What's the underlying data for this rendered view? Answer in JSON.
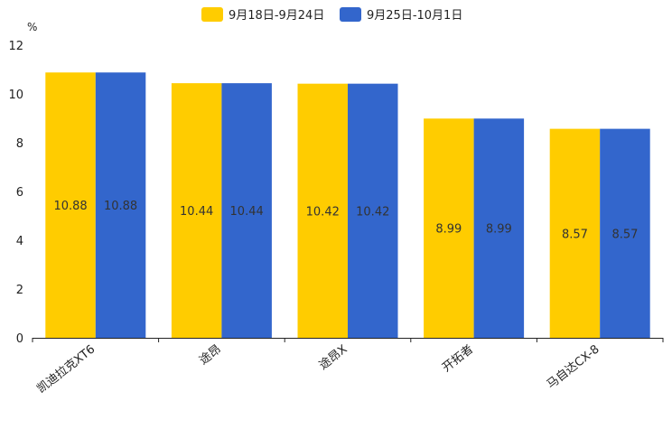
{
  "chart_data": {
    "type": "bar",
    "title": "",
    "ylabel": "%",
    "xlabel": "",
    "ylim": [
      0,
      12
    ],
    "yticks": [
      0,
      2,
      4,
      6,
      8,
      10,
      12
    ],
    "grid": false,
    "legend_position": "top-center",
    "categories": [
      "凯迪拉克XT6",
      "途昂",
      "途昂X",
      "开拓者",
      "马自达CX-8"
    ],
    "series": [
      {
        "name": "9月18日-9月24日",
        "color": "#FFCC00",
        "values": [
          10.88,
          10.44,
          10.42,
          8.99,
          8.57
        ]
      },
      {
        "name": "9月25日-10月1日",
        "color": "#3366CC",
        "values": [
          10.88,
          10.44,
          10.42,
          8.99,
          8.57
        ]
      }
    ]
  }
}
